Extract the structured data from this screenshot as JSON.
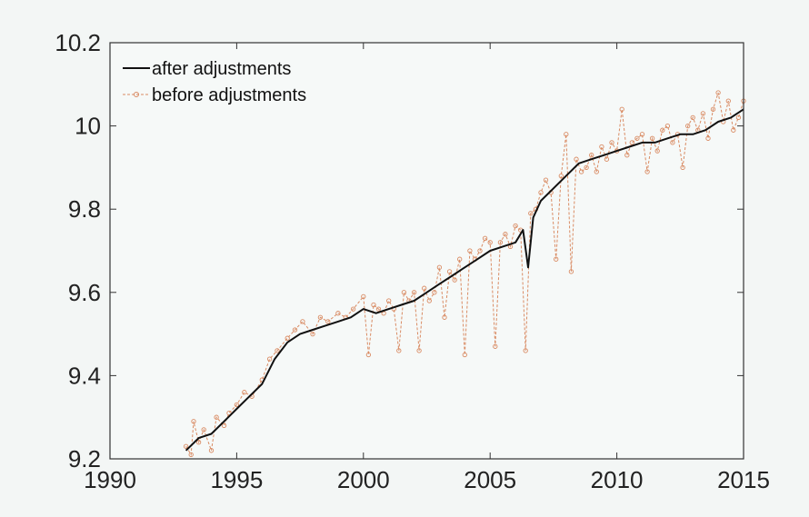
{
  "chart_data": {
    "type": "line",
    "title": "",
    "xlabel": "",
    "ylabel": "",
    "xlim": [
      1990,
      2015
    ],
    "ylim": [
      9.2,
      10.2
    ],
    "xticks": [
      "1990",
      "1995",
      "2000",
      "2005",
      "2010",
      "2015"
    ],
    "yticks": [
      "9.2",
      "9.4",
      "9.6",
      "9.8",
      "10",
      "10.2"
    ],
    "grid": false,
    "legend_position": "top-left",
    "series": [
      {
        "name": "after adjustments",
        "color": "#111111",
        "style": "solid",
        "x": [
          1993.0,
          1993.5,
          1994.0,
          1994.5,
          1995.0,
          1995.5,
          1996.0,
          1996.5,
          1997.0,
          1997.5,
          1998.0,
          1998.5,
          1999.0,
          1999.5,
          2000.0,
          2000.5,
          2001.0,
          2001.5,
          2002.0,
          2002.5,
          2003.0,
          2003.5,
          2004.0,
          2004.5,
          2005.0,
          2005.5,
          2006.0,
          2006.3,
          2006.5,
          2006.7,
          2007.0,
          2007.5,
          2008.0,
          2008.5,
          2009.0,
          2009.5,
          2010.0,
          2010.5,
          2011.0,
          2011.5,
          2012.0,
          2012.5,
          2013.0,
          2013.5,
          2014.0,
          2014.5,
          2015.0
        ],
        "y": [
          9.22,
          9.25,
          9.26,
          9.29,
          9.32,
          9.35,
          9.38,
          9.44,
          9.48,
          9.5,
          9.51,
          9.52,
          9.53,
          9.54,
          9.56,
          9.55,
          9.56,
          9.57,
          9.58,
          9.6,
          9.62,
          9.64,
          9.66,
          9.68,
          9.7,
          9.71,
          9.72,
          9.75,
          9.66,
          9.78,
          9.82,
          9.85,
          9.88,
          9.91,
          9.92,
          9.93,
          9.94,
          9.95,
          9.96,
          9.96,
          9.97,
          9.98,
          9.98,
          9.99,
          10.01,
          10.02,
          10.04
        ]
      },
      {
        "name": "before adjustments",
        "color": "#d98b63",
        "style": "dashed-markers",
        "x": [
          1993.0,
          1993.2,
          1993.3,
          1993.5,
          1993.7,
          1994.0,
          1994.2,
          1994.5,
          1994.7,
          1995.0,
          1995.3,
          1995.6,
          1996.0,
          1996.3,
          1996.6,
          1997.0,
          1997.3,
          1997.6,
          1998.0,
          1998.3,
          1998.6,
          1999.0,
          1999.3,
          1999.6,
          2000.0,
          2000.2,
          2000.4,
          2000.6,
          2000.8,
          2001.0,
          2001.2,
          2001.4,
          2001.6,
          2001.8,
          2002.0,
          2002.2,
          2002.4,
          2002.6,
          2002.8,
          2003.0,
          2003.2,
          2003.4,
          2003.6,
          2003.8,
          2004.0,
          2004.2,
          2004.4,
          2004.6,
          2004.8,
          2005.0,
          2005.2,
          2005.4,
          2005.6,
          2005.8,
          2006.0,
          2006.2,
          2006.4,
          2006.6,
          2006.8,
          2007.0,
          2007.2,
          2007.4,
          2007.6,
          2007.8,
          2008.0,
          2008.2,
          2008.4,
          2008.6,
          2008.8,
          2009.0,
          2009.2,
          2009.4,
          2009.6,
          2009.8,
          2010.0,
          2010.2,
          2010.4,
          2010.6,
          2010.8,
          2011.0,
          2011.2,
          2011.4,
          2011.6,
          2011.8,
          2012.0,
          2012.2,
          2012.4,
          2012.6,
          2012.8,
          2013.0,
          2013.2,
          2013.4,
          2013.6,
          2013.8,
          2014.0,
          2014.2,
          2014.4,
          2014.6,
          2014.8,
          2015.0
        ],
        "y": [
          9.23,
          9.21,
          9.29,
          9.24,
          9.27,
          9.22,
          9.3,
          9.28,
          9.31,
          9.33,
          9.36,
          9.35,
          9.39,
          9.44,
          9.46,
          9.49,
          9.51,
          9.53,
          9.5,
          9.54,
          9.53,
          9.55,
          9.54,
          9.56,
          9.59,
          9.45,
          9.57,
          9.56,
          9.55,
          9.58,
          9.56,
          9.46,
          9.6,
          9.58,
          9.6,
          9.46,
          9.61,
          9.58,
          9.6,
          9.66,
          9.54,
          9.65,
          9.63,
          9.68,
          9.45,
          9.7,
          9.68,
          9.7,
          9.73,
          9.72,
          9.47,
          9.72,
          9.74,
          9.71,
          9.76,
          9.75,
          9.46,
          9.79,
          9.8,
          9.84,
          9.87,
          9.84,
          9.68,
          9.88,
          9.98,
          9.65,
          9.92,
          9.89,
          9.9,
          9.93,
          9.89,
          9.95,
          9.92,
          9.96,
          9.94,
          10.04,
          9.93,
          9.96,
          9.97,
          9.98,
          9.89,
          9.97,
          9.94,
          9.99,
          10.0,
          9.96,
          9.98,
          9.9,
          10.0,
          10.02,
          9.99,
          10.03,
          9.97,
          10.04,
          10.08,
          10.01,
          10.06,
          9.99,
          10.02,
          10.06
        ]
      }
    ]
  }
}
